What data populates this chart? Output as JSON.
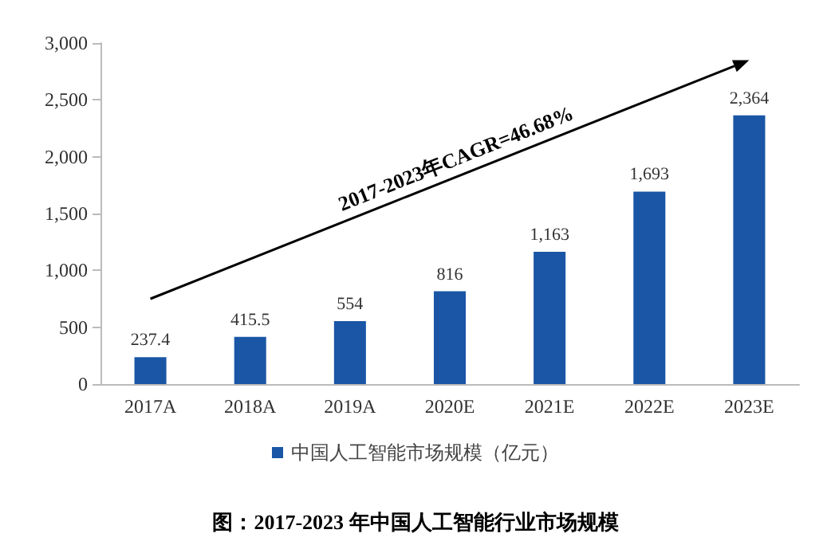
{
  "chart_data": {
    "type": "bar",
    "title": "图：2017-2023 年中国人工智能行业市场规模",
    "categories": [
      "2017A",
      "2018A",
      "2019A",
      "2020E",
      "2021E",
      "2022E",
      "2023E"
    ],
    "series": [
      {
        "name": "中国人工智能市场规模（亿元）",
        "color": "#1a56a5",
        "values": [
          237.4,
          415.5,
          554,
          816,
          1163,
          1693,
          2364
        ]
      }
    ],
    "value_labels": [
      "237.4",
      "415.5",
      "554",
      "816",
      "1,163",
      "1,693",
      "2,364"
    ],
    "ylim": [
      0,
      3000
    ],
    "yticks": [
      0,
      {
        "value": 500,
        "label": "500"
      },
      {
        "value": 1000,
        "label": "1,000"
      },
      {
        "value": 1500,
        "label": "1,500"
      },
      {
        "value": 2000,
        "label": "2,000"
      },
      {
        "value": 2500,
        "label": "2,500"
      },
      {
        "value": 3000,
        "label": "3,000"
      }
    ],
    "annotations": [
      "2017-2023年CAGR=46.68%"
    ],
    "grid": false,
    "legend": "bottom"
  }
}
